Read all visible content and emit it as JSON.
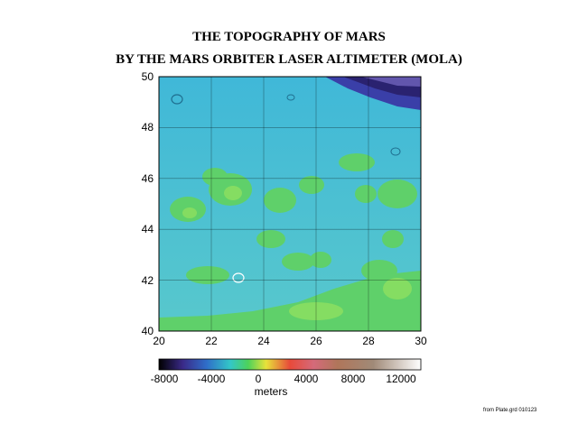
{
  "title_line1": "THE TOPOGRAPHY OF MARS",
  "title_line2": "BY THE MARS ORBITER LASER ALTIMETER (MOLA)",
  "map": {
    "longitude_ticks": [
      "20",
      "22",
      "24",
      "26",
      "28",
      "30"
    ],
    "latitude_ticks": [
      "40",
      "42",
      "44",
      "46",
      "48",
      "50"
    ],
    "lon_range": [
      20,
      30
    ],
    "lat_range": [
      40,
      50
    ],
    "grid": true
  },
  "colorbar": {
    "ticks": [
      "-8000",
      "-4000",
      "0",
      "4000",
      "8000",
      "12000"
    ],
    "units": "meters",
    "range": [
      -8000,
      14000
    ],
    "stops": [
      {
        "value": -8000,
        "color": "#000000"
      },
      {
        "value": -6000,
        "color": "#3a2a88"
      },
      {
        "value": -4000,
        "color": "#2f6ec9"
      },
      {
        "value": -2000,
        "color": "#33c7c7"
      },
      {
        "value": -500,
        "color": "#4dd25a"
      },
      {
        "value": 1000,
        "color": "#e8e23a"
      },
      {
        "value": 3000,
        "color": "#e84a3a"
      },
      {
        "value": 5000,
        "color": "#d46a7a"
      },
      {
        "value": 7000,
        "color": "#b0765a"
      },
      {
        "value": 10000,
        "color": "#a08a78"
      },
      {
        "value": 14000,
        "color": "#ffffff"
      }
    ]
  },
  "credit": "from Plate.grd 010123"
}
